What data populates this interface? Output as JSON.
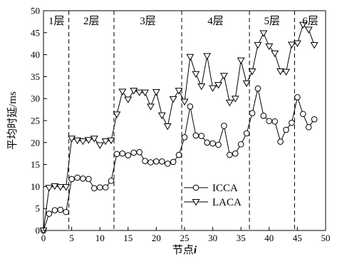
{
  "chart_data": {
    "type": "line",
    "title": "",
    "xlabel": "节点i",
    "xlabel_parts": [
      "节点",
      "i"
    ],
    "ylabel": "平均时延/ms",
    "xlim": [
      0,
      50
    ],
    "ylim": [
      0,
      50
    ],
    "xticks": [
      0,
      5,
      10,
      15,
      20,
      25,
      30,
      35,
      40,
      45,
      50
    ],
    "yticks": [
      0,
      5,
      10,
      15,
      20,
      25,
      30,
      35,
      40,
      45,
      50
    ],
    "grid": false,
    "legend_position": "center-right",
    "region_boundaries": [
      4.5,
      12.5,
      24.5,
      36.5,
      44.5
    ],
    "regions": [
      {
        "label": "1层",
        "x": 2.3
      },
      {
        "label": "2层",
        "x": 8.5
      },
      {
        "label": "3层",
        "x": 18.5
      },
      {
        "label": "4层",
        "x": 30.5
      },
      {
        "label": "5层",
        "x": 40.5
      },
      {
        "label": "6层",
        "x": 47.3
      }
    ],
    "x": [
      0,
      1,
      2,
      3,
      4,
      5,
      6,
      7,
      8,
      9,
      10,
      11,
      12,
      13,
      14,
      15,
      16,
      17,
      18,
      19,
      20,
      21,
      22,
      23,
      24,
      25,
      26,
      27,
      28,
      29,
      30,
      31,
      32,
      33,
      34,
      35,
      36,
      37,
      38,
      39,
      40,
      41,
      42,
      43,
      44,
      45,
      46,
      47,
      48
    ],
    "series": [
      {
        "name": "ICCA",
        "marker": "circle",
        "values": [
          0,
          3.8,
          4.6,
          4.7,
          4.2,
          11.7,
          12.0,
          11.8,
          11.7,
          9.6,
          9.8,
          9.8,
          11.3,
          17.4,
          17.5,
          17.1,
          17.7,
          17.8,
          15.8,
          15.5,
          15.7,
          15.7,
          15.2,
          15.6,
          17.2,
          21.2,
          28.2,
          21.6,
          21.5,
          20.0,
          19.8,
          19.5,
          23.8,
          17.2,
          17.5,
          19.6,
          22.1,
          26.7,
          32.3,
          26.1,
          24.9,
          24.8,
          20.2,
          22.9,
          24.5,
          30.3,
          26.5,
          23.5,
          25.3
        ]
      },
      {
        "name": "LACA",
        "marker": "triangle-down",
        "values": [
          0,
          9.7,
          10.1,
          9.9,
          9.9,
          20.9,
          20.5,
          20.3,
          20.6,
          20.9,
          19.4,
          20.3,
          20.5,
          26.4,
          31.6,
          29.8,
          31.8,
          31.4,
          31.4,
          28.2,
          31.5,
          26.2,
          23.7,
          29.9,
          31.8,
          29.3,
          39.5,
          35.6,
          32.8,
          39.7,
          32.4,
          33.1,
          35.2,
          29.1,
          30.0,
          38.7,
          33.5,
          36.2,
          42.2,
          44.9,
          41.9,
          40.3,
          36.2,
          36.1,
          42.3,
          42.6,
          46.8,
          45.7,
          42.2
        ]
      }
    ]
  }
}
